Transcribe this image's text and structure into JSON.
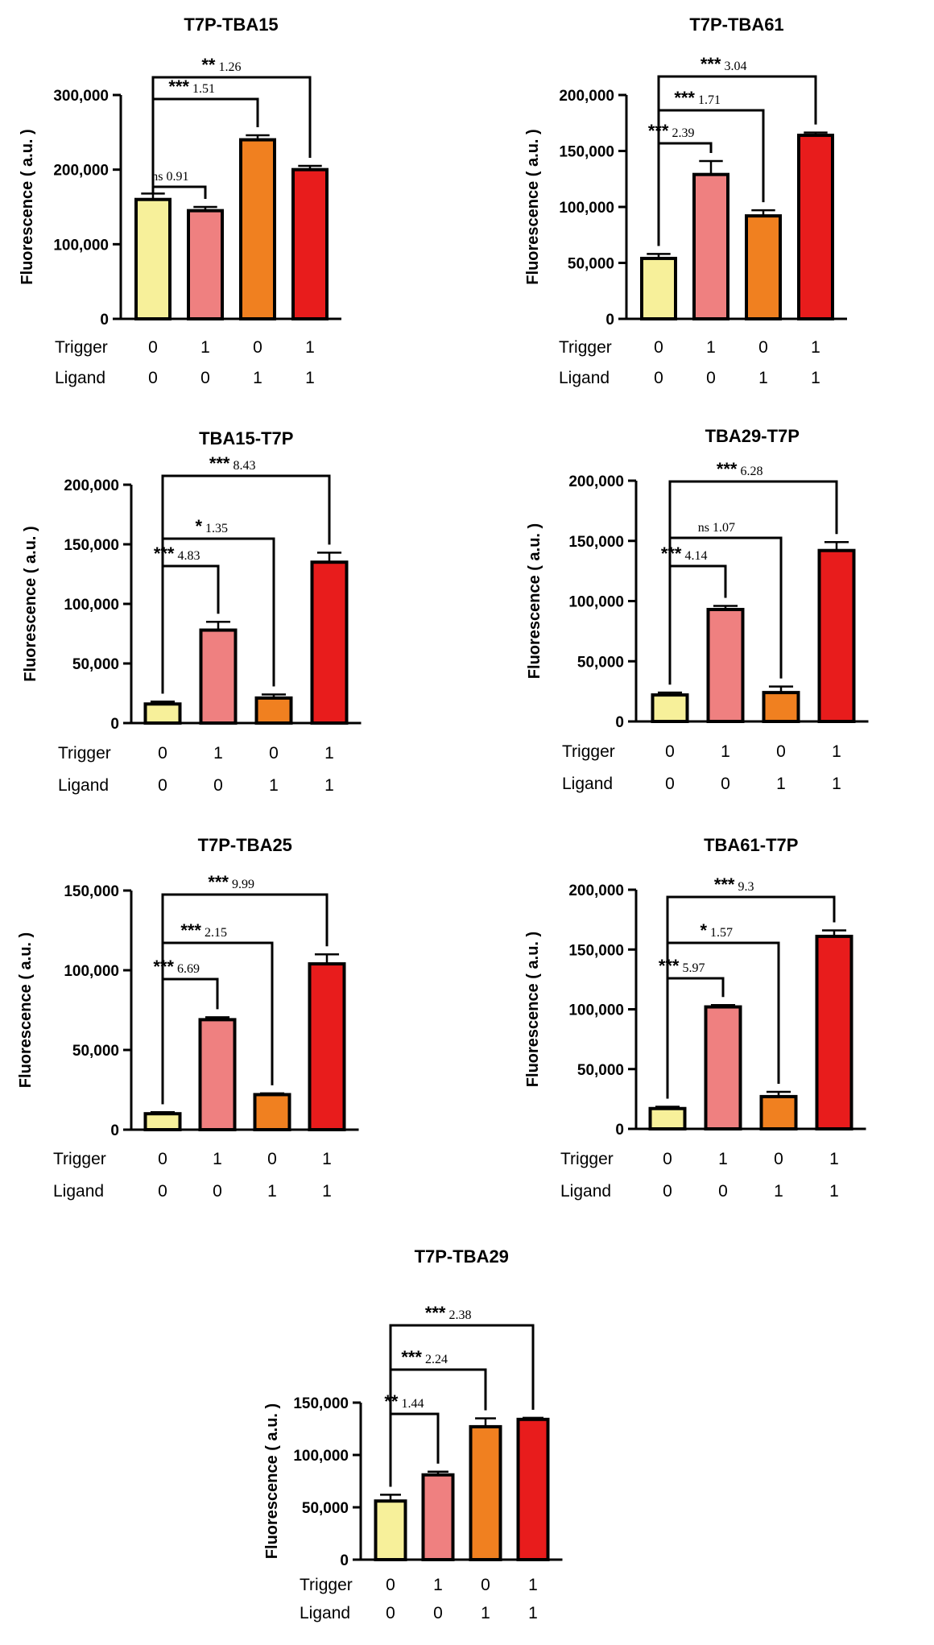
{
  "figure": {
    "row_labels": {
      "trigger": "Trigger",
      "ligand": "Ligand"
    },
    "ylabel": "Fluorescence ( a.u. )",
    "colors": [
      "#F7F09A",
      "#EF8080",
      "#F08020",
      "#E81C1C"
    ]
  },
  "chart_data": [
    {
      "type": "bar",
      "title": "T7P-TBA15",
      "ylabel": "Fluorescence ( a.u. )",
      "ylim": [
        0,
        300000
      ],
      "yticks": [
        "0",
        "100,000",
        "200,000",
        "300,000"
      ],
      "ytick_values": [
        0,
        100000,
        200000,
        300000
      ],
      "bold_ticks": true,
      "trigger": [
        "0",
        "1",
        "0",
        "1"
      ],
      "ligand": [
        "0",
        "0",
        "1",
        "1"
      ],
      "values": [
        160000,
        145000,
        240000,
        200000
      ],
      "errors": [
        8000,
        5000,
        6000,
        5000
      ],
      "comparisons": [
        {
          "from": 0,
          "to": 1,
          "stars": "ns",
          "ratio": "0.91"
        },
        {
          "from": 0,
          "to": 2,
          "stars": "***",
          "ratio": "1.51"
        },
        {
          "from": 0,
          "to": 3,
          "stars": "**",
          "ratio": "1.26"
        }
      ]
    },
    {
      "type": "bar",
      "title": "T7P-TBA61",
      "ylabel": "Fluorescence ( a.u. )",
      "ylim": [
        0,
        200000
      ],
      "yticks": [
        "0",
        "50,000",
        "100,000",
        "150,000",
        "200,000"
      ],
      "ytick_values": [
        0,
        50000,
        100000,
        150000,
        200000
      ],
      "bold_ticks": true,
      "trigger": [
        "0",
        "1",
        "0",
        "1"
      ],
      "ligand": [
        "0",
        "0",
        "1",
        "1"
      ],
      "values": [
        54000,
        129000,
        92000,
        164000
      ],
      "errors": [
        4000,
        12000,
        5000,
        2500
      ],
      "comparisons": [
        {
          "from": 0,
          "to": 1,
          "stars": "***",
          "ratio": "2.39"
        },
        {
          "from": 0,
          "to": 2,
          "stars": "***",
          "ratio": "1.71"
        },
        {
          "from": 0,
          "to": 3,
          "stars": "***",
          "ratio": "3.04"
        }
      ]
    },
    {
      "type": "bar",
      "title": "TBA15-T7P",
      "ylabel": "Fluorescence ( a.u. )",
      "ylim": [
        0,
        200000
      ],
      "yticks": [
        "0",
        "50,000",
        "100,000",
        "150,000",
        "200,000"
      ],
      "ytick_values": [
        0,
        50000,
        100000,
        150000,
        200000
      ],
      "bold_ticks": false,
      "trigger": [
        "0",
        "1",
        "0",
        "1"
      ],
      "ligand": [
        "0",
        "0",
        "1",
        "1"
      ],
      "values": [
        16000,
        78000,
        21000,
        135000
      ],
      "errors": [
        2000,
        7000,
        3000,
        8000
      ],
      "comparisons": [
        {
          "from": 0,
          "to": 1,
          "stars": "***",
          "ratio": "4.83"
        },
        {
          "from": 0,
          "to": 2,
          "stars": "*",
          "ratio": "1.35"
        },
        {
          "from": 0,
          "to": 3,
          "stars": "***",
          "ratio": "8.43"
        }
      ]
    },
    {
      "type": "bar",
      "title": "TBA29-T7P",
      "ylabel": "Fluorescence ( a.u. )",
      "ylim": [
        0,
        200000
      ],
      "yticks": [
        "0",
        "50,000",
        "100,000",
        "150,000",
        "200,000"
      ],
      "ytick_values": [
        0,
        50000,
        100000,
        150000,
        200000
      ],
      "bold_ticks": false,
      "trigger": [
        "0",
        "1",
        "0",
        "1"
      ],
      "ligand": [
        "0",
        "0",
        "1",
        "1"
      ],
      "values": [
        22000,
        93000,
        24000,
        142000
      ],
      "errors": [
        2000,
        3000,
        5000,
        7000
      ],
      "comparisons": [
        {
          "from": 0,
          "to": 1,
          "stars": "***",
          "ratio": "4.14"
        },
        {
          "from": 0,
          "to": 2,
          "stars": "ns",
          "ratio": "1.07"
        },
        {
          "from": 0,
          "to": 3,
          "stars": "***",
          "ratio": "6.28"
        }
      ]
    },
    {
      "type": "bar",
      "title": "T7P-TBA25",
      "ylabel": "Fluorescence ( a.u. )",
      "ylim": [
        0,
        150000
      ],
      "yticks": [
        "0",
        "50,000",
        "100,000",
        "150,000"
      ],
      "ytick_values": [
        0,
        50000,
        100000,
        150000
      ],
      "bold_ticks": false,
      "trigger": [
        "0",
        "1",
        "0",
        "1"
      ],
      "ligand": [
        "0",
        "0",
        "1",
        "1"
      ],
      "values": [
        10000,
        69000,
        22000,
        104000
      ],
      "errors": [
        1000,
        1500,
        800,
        6000
      ],
      "comparisons": [
        {
          "from": 0,
          "to": 1,
          "stars": "***",
          "ratio": "6.69"
        },
        {
          "from": 0,
          "to": 2,
          "stars": "***",
          "ratio": "2.15"
        },
        {
          "from": 0,
          "to": 3,
          "stars": "***",
          "ratio": "9.99"
        }
      ]
    },
    {
      "type": "bar",
      "title": "TBA61-T7P",
      "ylabel": "Fluorescence ( a.u. )",
      "ylim": [
        0,
        200000
      ],
      "yticks": [
        "0",
        "50,000",
        "100,000",
        "150,000",
        "200,000"
      ],
      "ytick_values": [
        0,
        50000,
        100000,
        150000,
        200000
      ],
      "bold_ticks": false,
      "trigger": [
        "0",
        "1",
        "0",
        "1"
      ],
      "ligand": [
        "0",
        "0",
        "1",
        "1"
      ],
      "values": [
        17000,
        102000,
        27000,
        161000
      ],
      "errors": [
        1500,
        1500,
        4000,
        5000
      ],
      "comparisons": [
        {
          "from": 0,
          "to": 1,
          "stars": "***",
          "ratio": "5.97"
        },
        {
          "from": 0,
          "to": 2,
          "stars": "*",
          "ratio": "1.57"
        },
        {
          "from": 0,
          "to": 3,
          "stars": "***",
          "ratio": "9.3"
        }
      ]
    },
    {
      "type": "bar",
      "title": "T7P-TBA29",
      "ylabel": "Fluorescence ( a.u. )",
      "ylim": [
        0,
        150000
      ],
      "yticks": [
        "0",
        "50,000",
        "100,000",
        "150,000"
      ],
      "ytick_values": [
        0,
        50000,
        100000,
        150000
      ],
      "bold_ticks": true,
      "trigger": [
        "0",
        "1",
        "0",
        "1"
      ],
      "ligand": [
        "0",
        "0",
        "1",
        "1"
      ],
      "values": [
        56000,
        81000,
        127000,
        134000
      ],
      "errors": [
        6000,
        3000,
        8000,
        1500
      ],
      "comparisons": [
        {
          "from": 0,
          "to": 1,
          "stars": "**",
          "ratio": "1.44"
        },
        {
          "from": 0,
          "to": 2,
          "stars": "***",
          "ratio": "2.24"
        },
        {
          "from": 0,
          "to": 3,
          "stars": "***",
          "ratio": "2.38"
        }
      ]
    }
  ]
}
